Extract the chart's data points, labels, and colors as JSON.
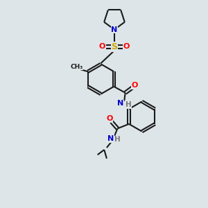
{
  "background_color": "#dde5e8",
  "bond_color": "#1a1a1a",
  "atom_colors": {
    "N": "#0000cc",
    "O": "#ff0000",
    "S": "#ccaa00",
    "C": "#1a1a1a",
    "H": "#7a7a7a"
  },
  "figsize": [
    3.0,
    3.0
  ],
  "dpi": 100,
  "lw": 1.5,
  "fs": 8.0
}
